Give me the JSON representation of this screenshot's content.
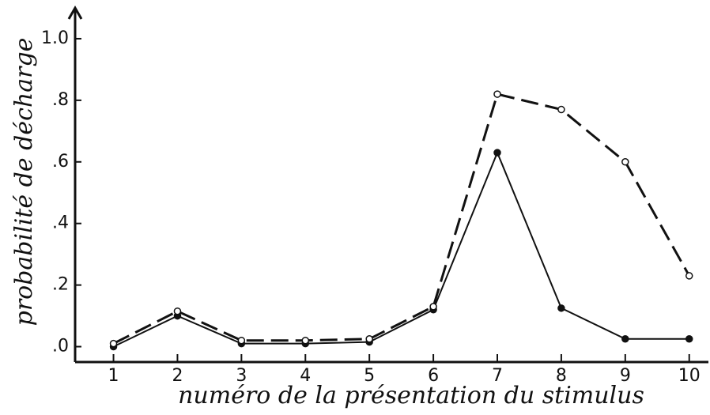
{
  "chart_data": {
    "type": "line",
    "x_label": "numéro de la présentation du stimulus",
    "y_label": "probabilité de décharge",
    "x": [
      1,
      2,
      3,
      4,
      5,
      6,
      7,
      8,
      9,
      10
    ],
    "xlim": [
      0.4,
      10.3
    ],
    "xticks": [
      1,
      2,
      3,
      4,
      5,
      6,
      7,
      8,
      9,
      10
    ],
    "ylim": [
      -0.05,
      1.1
    ],
    "yticks": [
      {
        "value": 0,
        "label": ".0"
      },
      {
        "value": 0.2,
        "label": ".2"
      },
      {
        "value": 0.4,
        "label": ".4"
      },
      {
        "value": 0.6,
        "label": ".6"
      },
      {
        "value": 0.8,
        "label": ".8"
      },
      {
        "value": 1.0,
        "label": "1.0"
      }
    ],
    "grid": false,
    "series": [
      {
        "color": "#111111",
        "dash": false,
        "marker": "filled",
        "values": [
          0,
          0.1,
          0.01,
          0.01,
          0.015,
          0.12,
          0.63,
          0.125,
          0.025,
          0.025
        ]
      },
      {
        "color": "#111111",
        "dash": true,
        "marker": "open",
        "values": [
          0.01,
          0.115,
          0.02,
          0.02,
          0.025,
          0.13,
          0.82,
          0.77,
          0.6,
          0.23
        ]
      }
    ]
  }
}
